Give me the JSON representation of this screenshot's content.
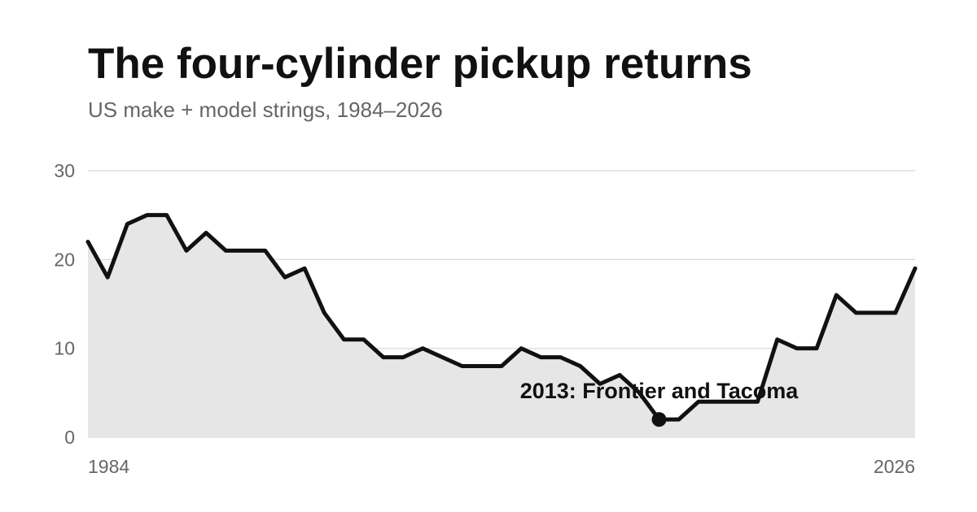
{
  "colors": {
    "line": "#111111",
    "area": "#e6e6e6",
    "grid": "#d6d6d6",
    "text": "#111111",
    "muted": "#666666"
  },
  "chart_data": {
    "type": "area",
    "title": "The four-cylinder pickup returns",
    "subtitle": "US make + model strings, 1984–2026",
    "xlabel": "",
    "ylabel": "",
    "xlim": [
      1984,
      2026
    ],
    "ylim": [
      0,
      30
    ],
    "yticks": [
      0,
      10,
      20,
      30
    ],
    "xtick_labels": [
      "1984",
      "2026"
    ],
    "grid": true,
    "x": [
      1984,
      1985,
      1986,
      1987,
      1988,
      1989,
      1990,
      1991,
      1992,
      1993,
      1994,
      1995,
      1996,
      1997,
      1998,
      1999,
      2000,
      2001,
      2002,
      2003,
      2004,
      2005,
      2006,
      2007,
      2008,
      2009,
      2010,
      2011,
      2012,
      2013,
      2014,
      2015,
      2016,
      2017,
      2018,
      2019,
      2020,
      2021,
      2022,
      2023,
      2024,
      2025,
      2026
    ],
    "series": [
      {
        "values": [
          22,
          18,
          24,
          25,
          25,
          21,
          23,
          21,
          21,
          21,
          18,
          19,
          14,
          11,
          11,
          9,
          9,
          10,
          9,
          8,
          8,
          8,
          10,
          9,
          9,
          8,
          6,
          7,
          5,
          2,
          2,
          4,
          4,
          4,
          4,
          11,
          10,
          10,
          16,
          14,
          14,
          14,
          19
        ]
      }
    ],
    "annotation": {
      "x": 2013,
      "y": 2,
      "text": "2013: Frontier and Tacoma"
    }
  }
}
